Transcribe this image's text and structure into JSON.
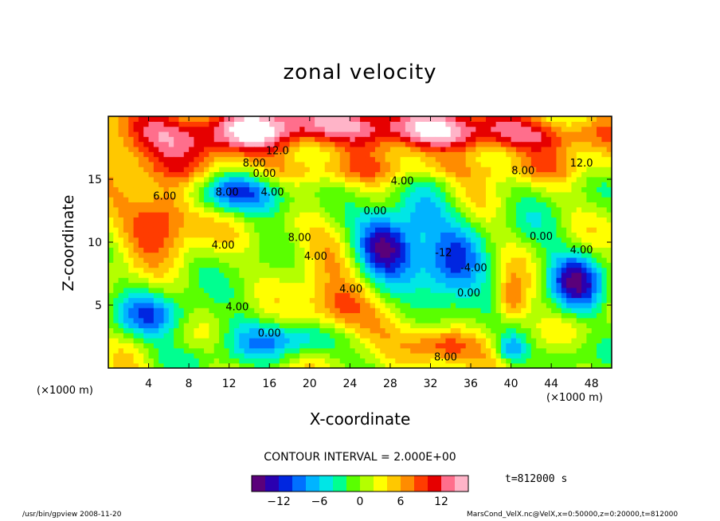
{
  "chart_data": {
    "type": "contour",
    "title": "zonal velocity",
    "xlabel": "X-coordinate",
    "ylabel": "Z-coordinate",
    "x_unit": "(×1000 m)",
    "y_unit": "(×1000 m)",
    "xlim": [
      0,
      50
    ],
    "ylim": [
      0,
      20
    ],
    "x_ticks": [
      4,
      8,
      12,
      16,
      20,
      24,
      28,
      32,
      36,
      40,
      44,
      48
    ],
    "y_ticks": [
      5,
      10,
      15
    ],
    "contour_interval_text": "CONTOUR INTERVAL = 2.000E+00",
    "time_text": "t=812000 s",
    "colorbar": {
      "range": [
        -16,
        16
      ],
      "ticks": [
        -12,
        -6,
        0,
        6,
        12
      ],
      "colors": [
        "#5a007a",
        "#2a00b0",
        "#0026e0",
        "#0070ff",
        "#00b4ff",
        "#00e6e6",
        "#00ff90",
        "#5aff00",
        "#b4ff00",
        "#ffff00",
        "#ffc800",
        "#ff8c00",
        "#ff3c00",
        "#e60000",
        "#ff6e8c",
        "#ffb4c8"
      ]
    },
    "contour_labels": [
      {
        "text": "12.0",
        "x": 16.8,
        "y": 17.0
      },
      {
        "text": "8.00",
        "x": 14.5,
        "y": 16.0
      },
      {
        "text": "0.00",
        "x": 15.5,
        "y": 15.2
      },
      {
        "text": "4.00",
        "x": 29.2,
        "y": 14.6
      },
      {
        "text": "8.00",
        "x": 41.2,
        "y": 15.4
      },
      {
        "text": "12.0",
        "x": 47.0,
        "y": 16.0
      },
      {
        "text": "8.00",
        "x": 11.8,
        "y": 13.7
      },
      {
        "text": "4.00",
        "x": 16.3,
        "y": 13.7
      },
      {
        "text": "6.00",
        "x": 5.6,
        "y": 13.4
      },
      {
        "text": "0.00",
        "x": 26.5,
        "y": 12.2
      },
      {
        "text": "8.00",
        "x": 19.0,
        "y": 10.1
      },
      {
        "text": "4.00",
        "x": 11.4,
        "y": 9.5
      },
      {
        "text": "4.00",
        "x": 20.6,
        "y": 8.6
      },
      {
        "text": "-12",
        "x": 33.3,
        "y": 8.9
      },
      {
        "text": "-4.00",
        "x": 36.3,
        "y": 7.7
      },
      {
        "text": "0.00",
        "x": 35.8,
        "y": 5.7
      },
      {
        "text": "0.00",
        "x": 43.0,
        "y": 10.2
      },
      {
        "text": "4.00",
        "x": 47.0,
        "y": 9.1
      },
      {
        "text": "4.00",
        "x": 24.1,
        "y": 6.0
      },
      {
        "text": "4.00",
        "x": 12.8,
        "y": 4.6
      },
      {
        "text": "0.00",
        "x": 16.0,
        "y": 2.5
      },
      {
        "text": "8.00",
        "x": 33.5,
        "y": 0.6
      }
    ]
  },
  "footer": {
    "left": "/usr/bin/gpview   2008-11-20",
    "right": "MarsCond_VelX.nc@VelX,x=0:50000,z=0:20000,t=812000"
  }
}
